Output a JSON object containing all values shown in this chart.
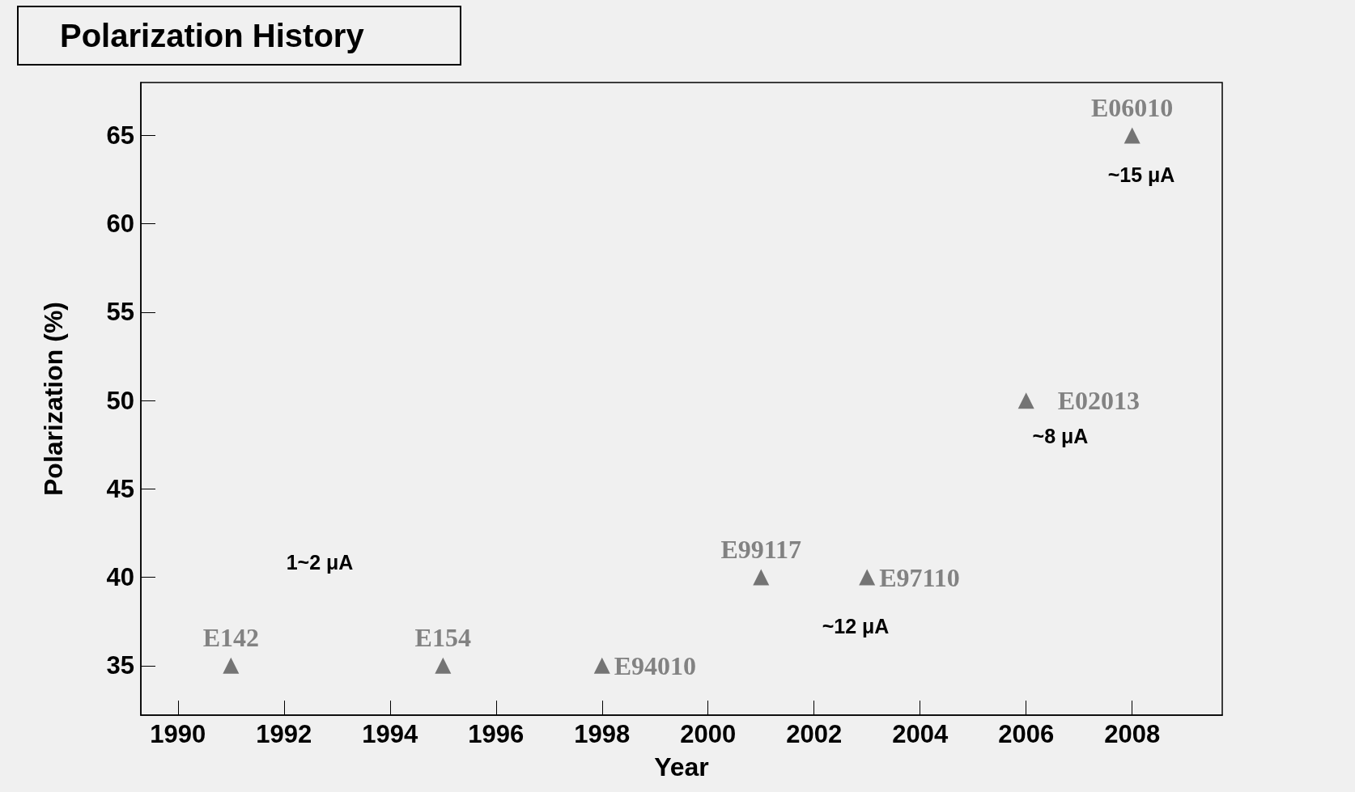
{
  "chart_data": {
    "type": "scatter",
    "title": "Polarization History",
    "xlabel": "Year",
    "ylabel": "Polarization (%)",
    "x": [
      1991,
      1995,
      1998,
      2001,
      2003,
      2006,
      2008
    ],
    "series": [
      {
        "color": "#555555",
        "values": [
          35,
          35,
          35,
          40,
          40,
          50,
          65
        ],
        "value_labels": [
          "E142",
          "E154",
          "E94010",
          "E99117",
          "E97110",
          "E02013",
          "E06010"
        ]
      }
    ],
    "xlim": [
      1989.3,
      2009.7
    ],
    "xticks": [
      1990,
      1992,
      1994,
      1996,
      1998,
      2000,
      2002,
      2004,
      2006,
      2008
    ],
    "ylim": [
      32.2,
      68
    ],
    "yticks": [
      35,
      40,
      45,
      50,
      55,
      60,
      65
    ],
    "annotations": [
      "1~2 μA",
      "~12 μA",
      "~8 μA",
      "~15 μA"
    ],
    "marker": "triangle",
    "grid": false
  }
}
